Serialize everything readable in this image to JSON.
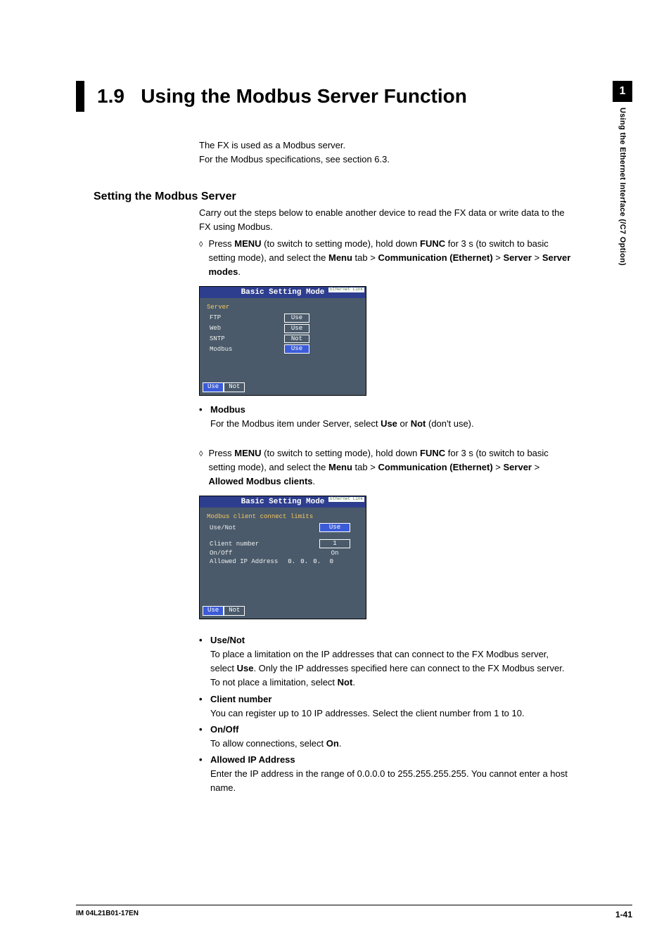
{
  "side_tab": {
    "number": "1",
    "text": "Using the Ethernet Interface (/C7 Option)"
  },
  "section": {
    "number": "1.9",
    "title": "Using the Modbus Server Function"
  },
  "intro": {
    "line1": "The FX is used as a Modbus server.",
    "line2": "For the Modbus specifications, see section 6.3."
  },
  "subheading": "Setting the Modbus Server",
  "para1": "Carry out the steps below to enable another device to read the FX data or write data to the FX using Modbus.",
  "step1": {
    "pre": "Press ",
    "menu": "MENU",
    "mid1": " (to switch to setting mode), hold down ",
    "func": "FUNC",
    "mid2": " for 3 s (to switch to basic setting mode), and select the ",
    "menu_tab": "Menu",
    "gt1": " tab > ",
    "comm": "Communication (Ethernet)",
    "gt2": " > ",
    "server": "Server",
    "gt3": " > ",
    "server_modes": "Server modes",
    "end": "."
  },
  "screenshot1": {
    "header": "Basic Setting Mode",
    "tag": "Ethernet\nLink",
    "group": "Server",
    "rows": [
      {
        "label": "FTP",
        "value": "Use",
        "selected": false
      },
      {
        "label": "Web",
        "value": "Use",
        "selected": false
      },
      {
        "label": "SNTP",
        "value": "Not",
        "selected": false
      },
      {
        "label": "Modbus",
        "value": "Use",
        "selected": true
      }
    ],
    "footer": {
      "btn1": "Use",
      "btn2": "Not"
    }
  },
  "bullet_modbus": {
    "title": "Modbus",
    "text_pre": "For the Modbus item under Server, select ",
    "use": "Use",
    "or": " or ",
    "not": "Not",
    "text_post": " (don't use)."
  },
  "step2": {
    "pre": "Press ",
    "menu": "MENU",
    "mid1": " (to switch to setting mode), hold down ",
    "func": "FUNC",
    "mid2": " for 3 s (to switch to basic setting mode), and select the ",
    "menu_tab": "Menu",
    "gt1": " tab > ",
    "comm": "Communication (Ethernet)",
    "gt2": " > ",
    "server": "Server",
    "gt3": " > ",
    "allowed": "Allowed Modbus clients",
    "end": "."
  },
  "screenshot2": {
    "header": "Basic Setting Mode",
    "tag": "Ethernet\nLink",
    "group": "Modbus client connect limits",
    "use_not_label": "Use/Not",
    "use_not_value": "Use",
    "client_label": "Client number",
    "client_value": "1",
    "onoff_label": "On/Off",
    "onoff_value": "On",
    "ip_label": "Allowed IP Address",
    "ip": [
      "0.",
      "0.",
      "0.",
      "0"
    ],
    "footer": {
      "btn1": "Use",
      "btn2": "Not"
    }
  },
  "bullets2": [
    {
      "title": "Use/Not",
      "text": "To place a limitation on the IP addresses that can connect to the FX Modbus server, select <b>Use</b>. Only the IP addresses specified here can connect to the FX Modbus server. To not place a limitation, select <b>Not</b>."
    },
    {
      "title": "Client number",
      "text": "You can register up to 10 IP addresses. Select the client number from 1 to 10."
    },
    {
      "title": "On/Off",
      "text": "To allow connections, select <b>On</b>."
    },
    {
      "title": "Allowed IP Address",
      "text": "Enter the IP address in the range of 0.0.0.0 to 255.255.255.255. You cannot enter a host name."
    }
  ],
  "footer": {
    "left": "IM 04L21B01-17EN",
    "right": "1-41"
  }
}
